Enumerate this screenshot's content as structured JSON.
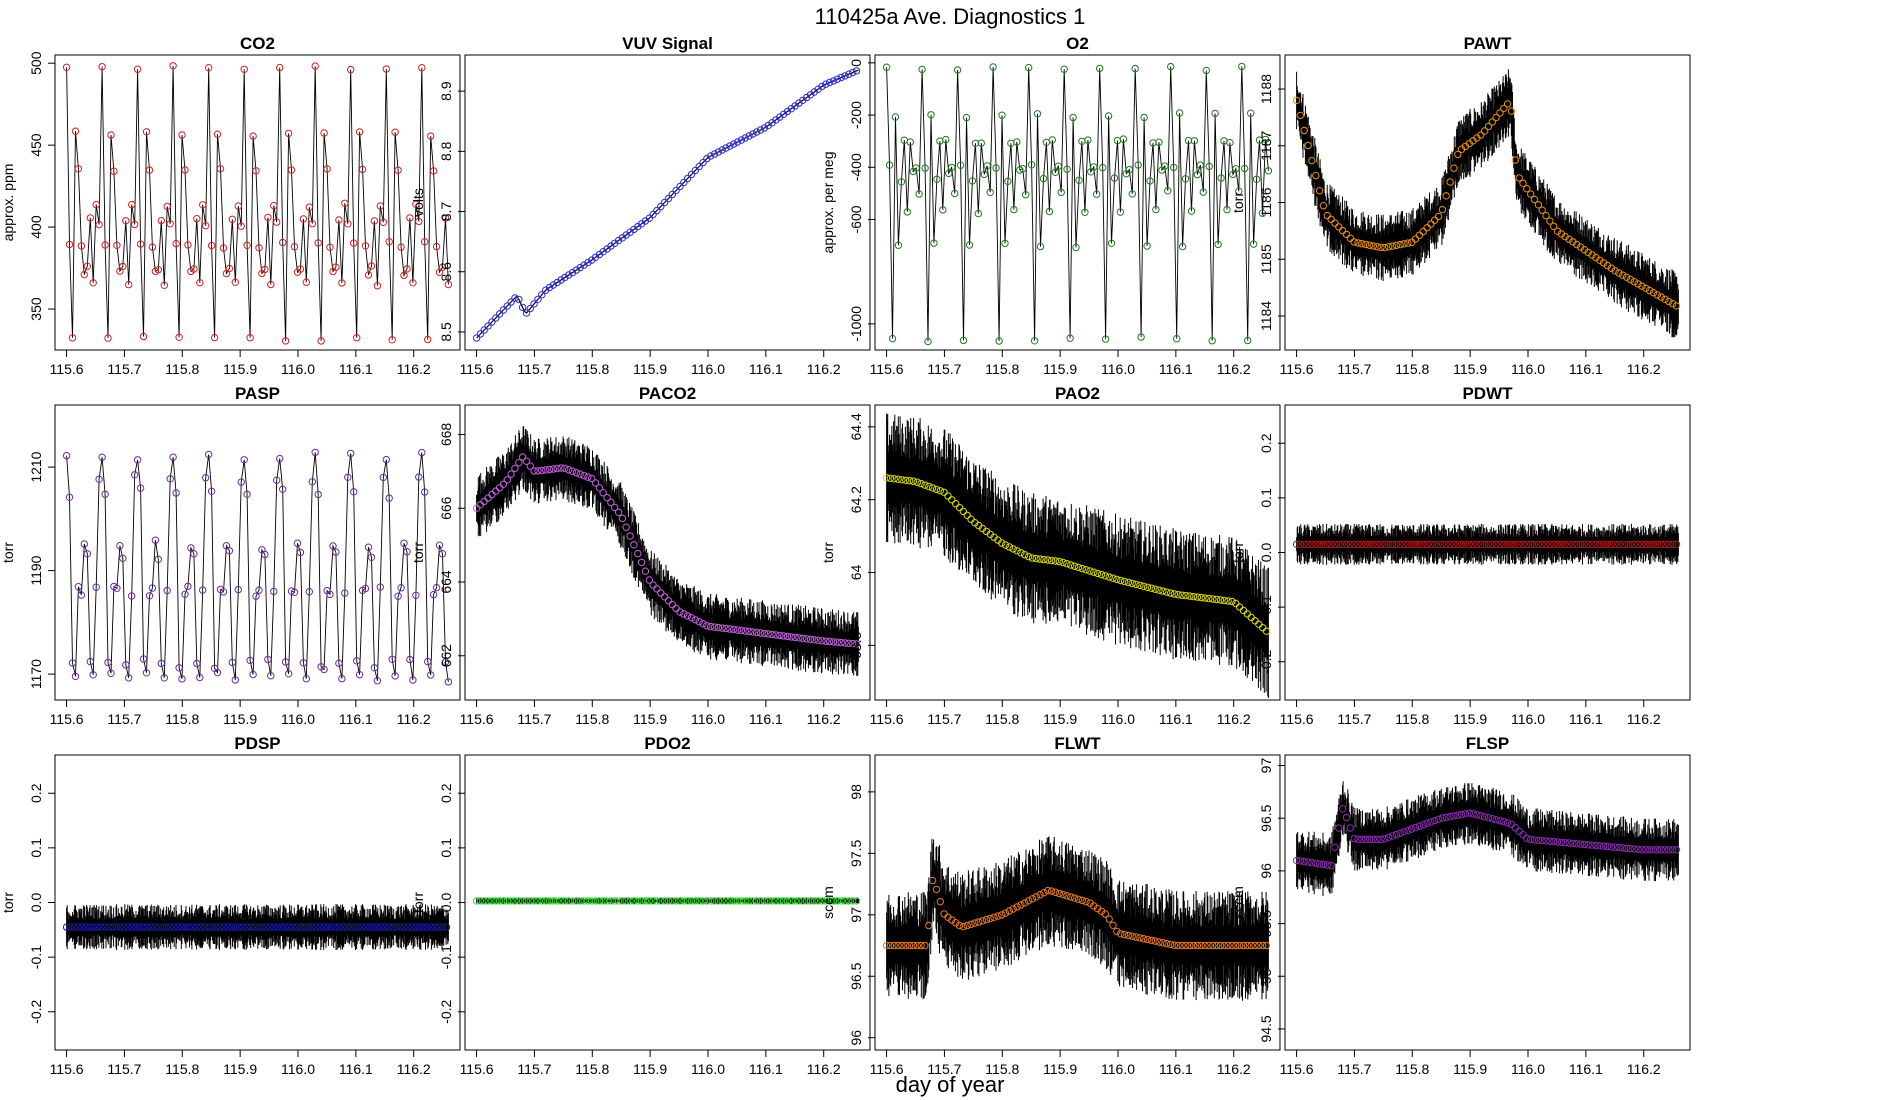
{
  "title": "110425a   Ave. Diagnostics 1",
  "xlabel": "day of year",
  "chart_data": [
    {
      "type": "line",
      "title": "CO2",
      "ylabel": "approx. ppm",
      "xlim": [
        115.58,
        116.28
      ],
      "xticks": [
        "115.6",
        "115.7",
        "115.8",
        "115.9",
        "116.0",
        "116.1",
        "116.2"
      ],
      "ylim": [
        325,
        505
      ],
      "yticks": [
        350,
        400,
        450,
        500
      ],
      "pattern": "cycle",
      "cycle": [
        497,
        390,
        332,
        457,
        435,
        388,
        372,
        375,
        405,
        365,
        413,
        402
      ],
      "base": 372,
      "jitter": 3,
      "marker": "#d62020",
      "noise": "thin"
    },
    {
      "type": "line",
      "title": "VUV Signal",
      "ylabel": "volts",
      "xlim": [
        115.58,
        116.28
      ],
      "xticks": [
        "115.6",
        "115.7",
        "115.8",
        "115.9",
        "116.0",
        "116.1",
        "116.2"
      ],
      "ylim": [
        8.47,
        8.96
      ],
      "yticks": [
        8.5,
        8.6,
        8.7,
        8.8,
        8.9
      ],
      "pattern": "points",
      "points": [
        [
          115.6,
          8.49
        ],
        [
          115.67,
          8.56
        ],
        [
          115.685,
          8.53
        ],
        [
          115.72,
          8.57
        ],
        [
          115.8,
          8.62
        ],
        [
          115.9,
          8.69
        ],
        [
          116.0,
          8.79
        ],
        [
          116.1,
          8.84
        ],
        [
          116.2,
          8.91
        ],
        [
          116.26,
          8.935
        ]
      ],
      "marker": "#2b2bd6",
      "noise": "none"
    },
    {
      "type": "line",
      "title": "O2",
      "ylabel": "approx. per meg",
      "xlim": [
        115.58,
        116.28
      ],
      "xticks": [
        "115.6",
        "115.7",
        "115.8",
        "115.9",
        "116.0",
        "116.1",
        "116.2"
      ],
      "ylim": [
        -1100,
        30
      ],
      "yticks": [
        -1000,
        -600,
        -400,
        -200,
        0
      ],
      "pattern": "cycle",
      "cycle": [
        -20,
        -400,
        -1060,
        -200,
        -700,
        -450,
        -300,
        -570,
        -300,
        -420,
        -400,
        -500
      ],
      "base": -400,
      "jitter": 20,
      "marker": "#1f7a1f",
      "noise": "thin"
    },
    {
      "type": "line",
      "title": "PAWT",
      "ylabel": "torr",
      "xlim": [
        115.58,
        116.28
      ],
      "xticks": [
        "115.6",
        "115.7",
        "115.8",
        "115.9",
        "116.0",
        "116.1",
        "116.2"
      ],
      "ylim": [
        1183.4,
        1188.6
      ],
      "yticks": [
        1184,
        1185,
        1186,
        1187,
        1188
      ],
      "pattern": "points",
      "points": [
        [
          115.6,
          1187.8
        ],
        [
          115.65,
          1185.8
        ],
        [
          115.7,
          1185.3
        ],
        [
          115.75,
          1185.2
        ],
        [
          115.8,
          1185.3
        ],
        [
          115.85,
          1185.8
        ],
        [
          115.88,
          1186.9
        ],
        [
          115.92,
          1187.2
        ],
        [
          115.97,
          1187.8
        ],
        [
          115.98,
          1186.5
        ],
        [
          116.05,
          1185.5
        ],
        [
          116.15,
          1184.8
        ],
        [
          116.27,
          1184.1
        ]
      ],
      "marker": "#e8900c",
      "noise": "band",
      "noiseAmp": 0.4
    },
    {
      "type": "line",
      "title": "PASP",
      "ylabel": "torr",
      "xlim": [
        115.58,
        116.28
      ],
      "xticks": [
        "115.6",
        "115.7",
        "115.8",
        "115.9",
        "116.0",
        "116.1",
        "116.2"
      ],
      "ylim": [
        1165,
        1222
      ],
      "yticks": [
        1170,
        1190,
        1210
      ],
      "pattern": "cycle",
      "cycle": [
        1212,
        1205,
        1172,
        1170,
        1186,
        1186,
        1195,
        1193,
        1172,
        1169,
        1186,
        1208
      ],
      "base": 1186,
      "jitter": 2,
      "marker": "#6a2c9e",
      "noise": "thin"
    },
    {
      "type": "line",
      "title": "PACO2",
      "ylabel": "torr",
      "xlim": [
        115.58,
        116.28
      ],
      "xticks": [
        "115.6",
        "115.7",
        "115.8",
        "115.9",
        "116.0",
        "116.1",
        "116.2"
      ],
      "ylim": [
        660.8,
        668.8
      ],
      "yticks": [
        662,
        664,
        666,
        668
      ],
      "pattern": "points",
      "points": [
        [
          115.6,
          666.0
        ],
        [
          115.65,
          666.7
        ],
        [
          115.68,
          667.4
        ],
        [
          115.7,
          667.0
        ],
        [
          115.75,
          667.1
        ],
        [
          115.8,
          666.8
        ],
        [
          115.85,
          665.8
        ],
        [
          115.9,
          664.0
        ],
        [
          115.95,
          663.2
        ],
        [
          116.0,
          662.8
        ],
        [
          116.1,
          662.6
        ],
        [
          116.2,
          662.4
        ],
        [
          116.27,
          662.3
        ]
      ],
      "marker": "#c060d8",
      "noise": "band",
      "noiseAmp": 0.6
    },
    {
      "type": "line",
      "title": "PAO2",
      "ylabel": "torr",
      "xlim": [
        115.58,
        116.28
      ],
      "xticks": [
        "115.6",
        "115.7",
        "115.8",
        "115.9",
        "116.0",
        "116.1",
        "116.2"
      ],
      "ylim": [
        63.65,
        64.46
      ],
      "yticks": [
        63.8,
        64.0,
        64.2,
        64.4
      ],
      "pattern": "points",
      "points": [
        [
          115.6,
          64.26
        ],
        [
          115.65,
          64.25
        ],
        [
          115.7,
          64.22
        ],
        [
          115.75,
          64.14
        ],
        [
          115.8,
          64.08
        ],
        [
          115.85,
          64.04
        ],
        [
          115.9,
          64.03
        ],
        [
          116.0,
          63.98
        ],
        [
          116.1,
          63.94
        ],
        [
          116.2,
          63.92
        ],
        [
          116.27,
          63.82
        ]
      ],
      "marker": "#d8d800",
      "noise": "band",
      "noiseAmp": 0.12
    },
    {
      "type": "line",
      "title": "PDWT",
      "ylabel": "torr",
      "xlim": [
        115.58,
        116.28
      ],
      "xticks": [
        "115.6",
        "115.7",
        "115.8",
        "115.9",
        "116.0",
        "116.1",
        "116.2"
      ],
      "ylim": [
        -0.27,
        0.27
      ],
      "yticks": [
        -0.2,
        -0.1,
        0.0,
        0.1,
        0.2
      ],
      "pattern": "flat",
      "base": 0.015,
      "marker": "#b01818",
      "noise": "band",
      "noiseAmp": 0.025
    },
    {
      "type": "line",
      "title": "PDSP",
      "ylabel": "torr",
      "xlim": [
        115.58,
        116.28
      ],
      "xticks": [
        "115.6",
        "115.7",
        "115.8",
        "115.9",
        "116.0",
        "116.1",
        "116.2"
      ],
      "ylim": [
        -0.27,
        0.27
      ],
      "yticks": [
        -0.2,
        -0.1,
        0.0,
        0.1,
        0.2
      ],
      "pattern": "flat",
      "base": -0.045,
      "marker": "#1a1aa0",
      "noise": "band",
      "noiseAmp": 0.028
    },
    {
      "type": "line",
      "title": "PDO2",
      "ylabel": "torr",
      "xlim": [
        115.58,
        116.28
      ],
      "xticks": [
        "115.6",
        "115.7",
        "115.8",
        "115.9",
        "116.0",
        "116.1",
        "116.2"
      ],
      "ylim": [
        -0.27,
        0.27
      ],
      "yticks": [
        -0.2,
        -0.1,
        0.0,
        0.1,
        0.2
      ],
      "pattern": "flat",
      "base": 0.003,
      "marker": "#30d830",
      "noise": "band",
      "noiseAmp": 0.004
    },
    {
      "type": "line",
      "title": "FLWT",
      "ylabel": "sccm",
      "xlim": [
        115.58,
        116.28
      ],
      "xticks": [
        "115.6",
        "115.7",
        "115.8",
        "115.9",
        "116.0",
        "116.1",
        "116.2"
      ],
      "ylim": [
        95.9,
        98.3
      ],
      "yticks": [
        96.0,
        96.5,
        97.0,
        97.5,
        98.0
      ],
      "pattern": "points",
      "points": [
        [
          115.6,
          96.75
        ],
        [
          115.67,
          96.75
        ],
        [
          115.68,
          97.3
        ],
        [
          115.7,
          97.0
        ],
        [
          115.73,
          96.9
        ],
        [
          115.8,
          97.0
        ],
        [
          115.88,
          97.2
        ],
        [
          115.95,
          97.1
        ],
        [
          115.98,
          97.0
        ],
        [
          116.0,
          96.85
        ],
        [
          116.1,
          96.75
        ],
        [
          116.2,
          96.75
        ],
        [
          116.27,
          96.75
        ]
      ],
      "marker": "#e87820",
      "noise": "band",
      "noiseAmp": 0.3
    },
    {
      "type": "line",
      "title": "FLSP",
      "ylabel": "sccm",
      "xlim": [
        115.58,
        116.28
      ],
      "xticks": [
        "115.6",
        "115.7",
        "115.8",
        "115.9",
        "116.0",
        "116.1",
        "116.2"
      ],
      "ylim": [
        94.3,
        97.1
      ],
      "yticks": [
        94.5,
        95.0,
        95.5,
        96.0,
        96.5,
        97.0
      ],
      "pattern": "points",
      "points": [
        [
          115.6,
          96.1
        ],
        [
          115.66,
          96.05
        ],
        [
          115.68,
          96.6
        ],
        [
          115.7,
          96.3
        ],
        [
          115.75,
          96.3
        ],
        [
          115.85,
          96.5
        ],
        [
          115.9,
          96.55
        ],
        [
          115.97,
          96.45
        ],
        [
          116.0,
          96.3
        ],
        [
          116.1,
          96.25
        ],
        [
          116.2,
          96.2
        ],
        [
          116.27,
          96.2
        ]
      ],
      "marker": "#8a2ab0",
      "noise": "band",
      "noiseAmp": 0.2
    }
  ]
}
